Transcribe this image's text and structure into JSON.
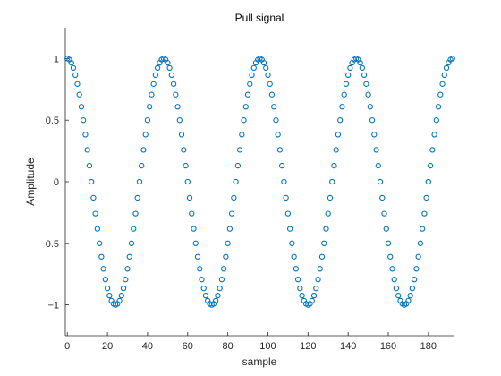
{
  "chart_data": {
    "type": "scatter",
    "title": "Pull signal",
    "xlabel": "sample",
    "ylabel": "Amplitude",
    "xlim": [
      -1,
      193
    ],
    "ylim": [
      -1.25,
      1.25
    ],
    "xticks": [
      0,
      20,
      40,
      60,
      80,
      100,
      120,
      140,
      160,
      180
    ],
    "yticks": [
      -1,
      -0.5,
      0,
      0.5,
      1
    ],
    "ytick_labels": [
      "−1",
      "−0.5",
      "0",
      "0.5",
      "1"
    ],
    "grid": false,
    "legend": "none",
    "marker": "open-circle",
    "color": "#0072BD",
    "x_start": 0,
    "x_step": 1,
    "y": [
      1,
      0.9914,
      0.9659,
      0.9239,
      0.866,
      0.7934,
      0.7071,
      0.6088,
      0.5,
      0.3827,
      0.2588,
      0.1305,
      0,
      -0.1305,
      -0.2588,
      -0.3827,
      -0.5,
      -0.6088,
      -0.7071,
      -0.7934,
      -0.866,
      -0.9239,
      -0.9659,
      -0.9914,
      -1,
      -0.9914,
      -0.9659,
      -0.9239,
      -0.866,
      -0.7934,
      -0.7071,
      -0.6088,
      -0.5,
      -0.3827,
      -0.2588,
      -0.1305,
      0,
      0.1305,
      0.2588,
      0.3827,
      0.5,
      0.6088,
      0.7071,
      0.7934,
      0.866,
      0.9239,
      0.9659,
      0.9914,
      1,
      0.9914,
      0.9659,
      0.9239,
      0.866,
      0.7934,
      0.7071,
      0.6088,
      0.5,
      0.3827,
      0.2588,
      0.1305,
      0,
      -0.1305,
      -0.2588,
      -0.3827,
      -0.5,
      -0.6088,
      -0.7071,
      -0.7934,
      -0.866,
      -0.9239,
      -0.9659,
      -0.9914,
      -1,
      -0.9914,
      -0.9659,
      -0.9239,
      -0.866,
      -0.7934,
      -0.7071,
      -0.6088,
      -0.5,
      -0.3827,
      -0.2588,
      -0.1305,
      0,
      0.1305,
      0.2588,
      0.3827,
      0.5,
      0.6088,
      0.7071,
      0.7934,
      0.866,
      0.9239,
      0.9659,
      0.9914,
      1,
      0.9914,
      0.9659,
      0.9239,
      0.866,
      0.7934,
      0.7071,
      0.6088,
      0.5,
      0.3827,
      0.2588,
      0.1305,
      0,
      -0.1305,
      -0.2588,
      -0.3827,
      -0.5,
      -0.6088,
      -0.7071,
      -0.7934,
      -0.866,
      -0.9239,
      -0.9659,
      -0.9914,
      -1,
      -0.9914,
      -0.9659,
      -0.9239,
      -0.866,
      -0.7934,
      -0.7071,
      -0.6088,
      -0.5,
      -0.3827,
      -0.2588,
      -0.1305,
      0,
      0.1305,
      0.2588,
      0.3827,
      0.5,
      0.6088,
      0.7071,
      0.7934,
      0.866,
      0.9239,
      0.9659,
      0.9914,
      1,
      0.9914,
      0.9659,
      0.9239,
      0.866,
      0.7934,
      0.7071,
      0.6088,
      0.5,
      0.3827,
      0.2588,
      0.1305,
      0,
      -0.1305,
      -0.2588,
      -0.3827,
      -0.5,
      -0.6088,
      -0.7071,
      -0.7934,
      -0.866,
      -0.9239,
      -0.9659,
      -0.9914,
      -1,
      -0.9914,
      -0.9659,
      -0.9239,
      -0.866,
      -0.7934,
      -0.7071,
      -0.6088,
      -0.5,
      -0.3827,
      -0.2588,
      -0.1305,
      0,
      0.1305,
      0.2588,
      0.3827,
      0.5,
      0.6088,
      0.7071,
      0.7934,
      0.866,
      0.9239,
      0.9659,
      0.9914,
      1
    ]
  }
}
